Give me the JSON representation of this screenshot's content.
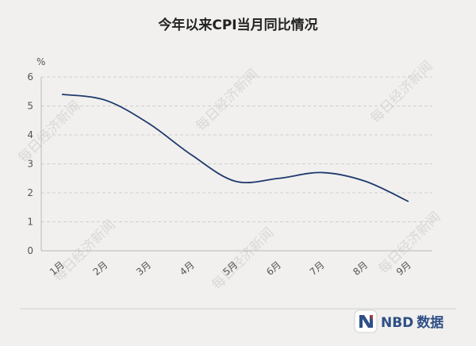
{
  "chart_data": {
    "type": "line",
    "title": "今年以来CPI当月同比情况",
    "ylabel": "%",
    "xlabel": "",
    "categories": [
      "1月",
      "2月",
      "3月",
      "4月",
      "5月",
      "6月",
      "7月",
      "8月",
      "9月"
    ],
    "series": [
      {
        "values": [
          5.4,
          5.2,
          4.4,
          3.3,
          2.4,
          2.5,
          2.7,
          2.4,
          1.7
        ]
      }
    ],
    "ylim": [
      0,
      6
    ],
    "yticks": [
      0,
      1,
      2,
      3,
      4,
      5,
      6
    ],
    "grid": true,
    "line_color": "#1f3a6e"
  },
  "watermark": "每日经济新闻",
  "logo": {
    "brand": "NBD",
    "suffix": "数据",
    "color": "#2f4f86"
  }
}
